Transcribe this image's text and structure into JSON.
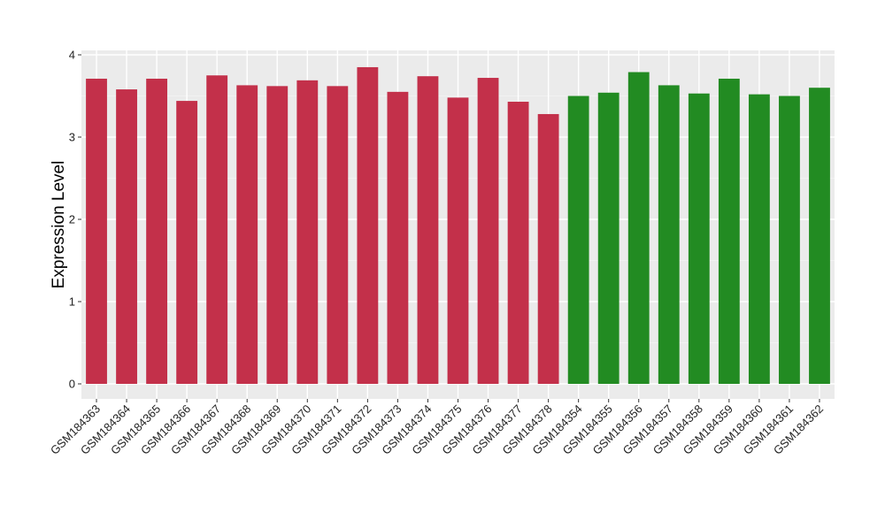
{
  "chart_data": {
    "type": "bar",
    "xlabel": "",
    "ylabel": "Expression Level",
    "ylim": [
      -0.18,
      4.05
    ],
    "yticks": [
      0,
      1,
      2,
      3,
      4
    ],
    "grid": true,
    "legend": "none",
    "colors": {
      "group_a": "#C3304A",
      "group_b": "#228B22",
      "panel_bg": "#EBEBEB",
      "grid_major": "#FFFFFF",
      "grid_minor": "#F5F5F5"
    },
    "categories": [
      "GSM184363",
      "GSM184364",
      "GSM184365",
      "GSM184366",
      "GSM184367",
      "GSM184368",
      "GSM184369",
      "GSM184370",
      "GSM184371",
      "GSM184372",
      "GSM184373",
      "GSM184374",
      "GSM184375",
      "GSM184376",
      "GSM184377",
      "GSM184378",
      "GSM184354",
      "GSM184355",
      "GSM184356",
      "GSM184357",
      "GSM184358",
      "GSM184359",
      "GSM184360",
      "GSM184361",
      "GSM184362"
    ],
    "values": [
      3.71,
      3.58,
      3.71,
      3.44,
      3.75,
      3.63,
      3.62,
      3.69,
      3.62,
      3.85,
      3.55,
      3.74,
      3.48,
      3.72,
      3.43,
      3.28,
      3.5,
      3.54,
      3.79,
      3.63,
      3.53,
      3.71,
      3.52,
      3.5,
      3.6
    ],
    "groups": [
      "a",
      "a",
      "a",
      "a",
      "a",
      "a",
      "a",
      "a",
      "a",
      "a",
      "a",
      "a",
      "a",
      "a",
      "a",
      "a",
      "b",
      "b",
      "b",
      "b",
      "b",
      "b",
      "b",
      "b",
      "b"
    ]
  }
}
